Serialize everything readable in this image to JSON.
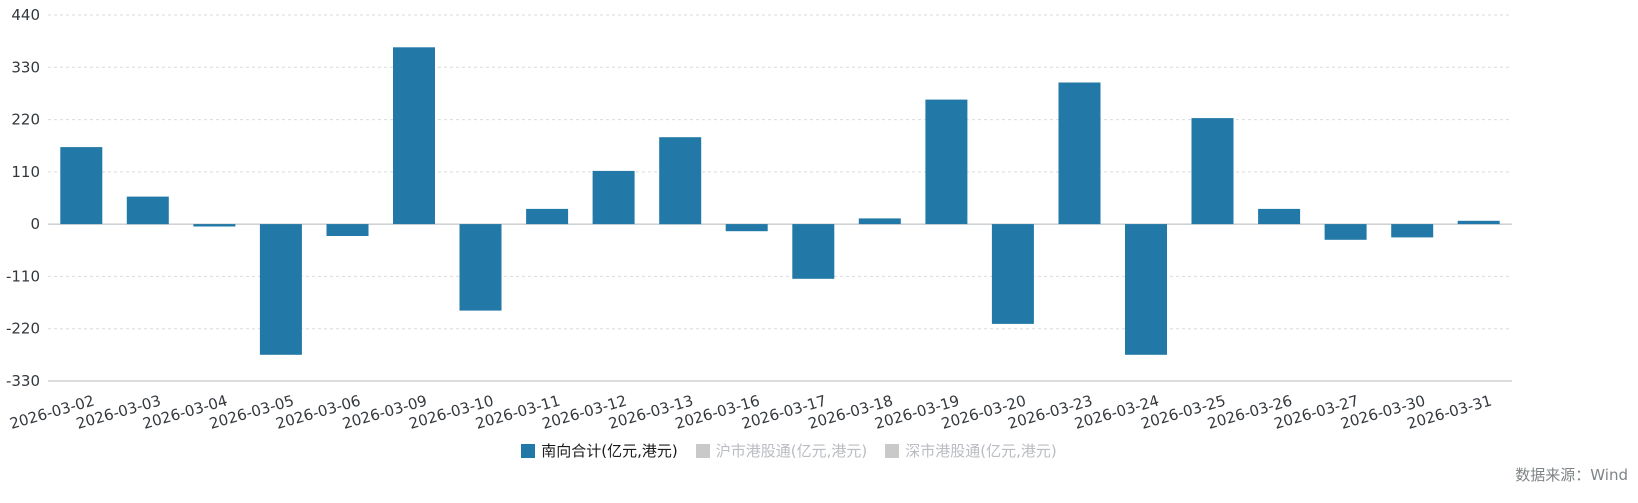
{
  "source_note": "数据来源：Wind",
  "legend": [
    {
      "label": "南向合计(亿元,港元)",
      "color": "#2279a7",
      "active": true
    },
    {
      "label": "沪市港股通(亿元,港元)",
      "color": "#c9c9c9",
      "active": false
    },
    {
      "label": "深市港股通(亿元,港元)",
      "color": "#c9c9c9",
      "active": false
    }
  ],
  "chart_data": {
    "type": "bar",
    "title": "",
    "xlabel": "",
    "ylabel": "",
    "categories": [
      "2026-03-02",
      "2026-03-03",
      "2026-03-04",
      "2026-03-05",
      "2026-03-06",
      "2026-03-09",
      "2026-03-10",
      "2026-03-11",
      "2026-03-12",
      "2026-03-13",
      "2026-03-16",
      "2026-03-17",
      "2026-03-18",
      "2026-03-19",
      "2026-03-20",
      "2026-03-23",
      "2026-03-24",
      "2026-03-25",
      "2026-03-26",
      "2026-03-27",
      "2026-03-30",
      "2026-03-31"
    ],
    "series": [
      {
        "name": "南向合计(亿元,港元)",
        "values": [
          162,
          58,
          -5,
          -275,
          -25,
          372,
          -182,
          32,
          112,
          183,
          -15,
          -115,
          12,
          262,
          -210,
          298,
          -275,
          223,
          32,
          -33,
          -28,
          7
        ]
      }
    ],
    "yticks": [
      440,
      330,
      220,
      110,
      0,
      -110,
      -220,
      -330
    ],
    "ylim": [
      -330,
      440
    ],
    "bar_color": "#2279a7",
    "grid": true,
    "grid_style": "dashed",
    "legend_position": "bottom"
  }
}
